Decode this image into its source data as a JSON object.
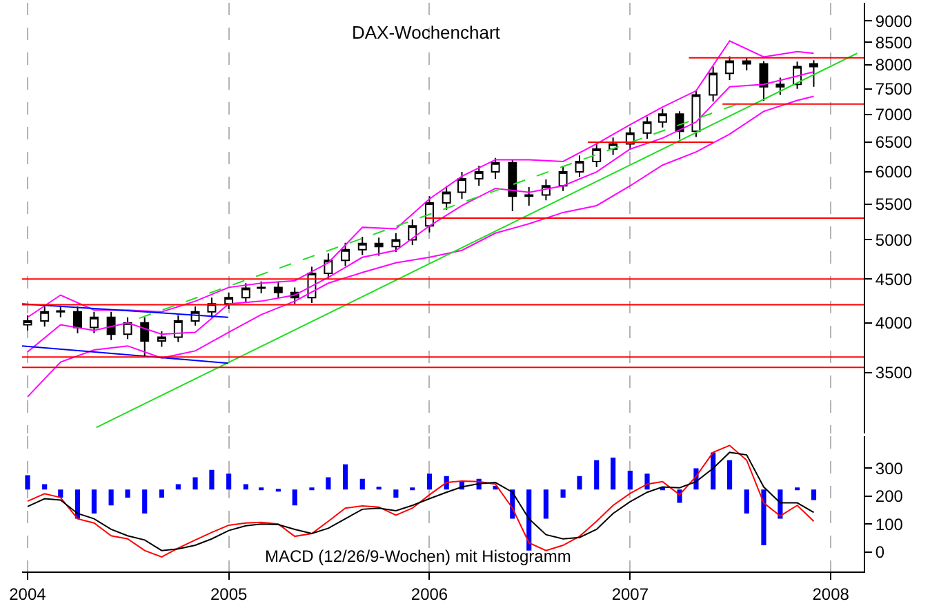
{
  "chart_data": [
    {
      "type": "candlestick",
      "title": "DAX-Wochenchart",
      "log": true,
      "grid": "x",
      "tick_labels": "y",
      "color": "#000000",
      "xlim": [
        "2003-12-22",
        "2008-03-01"
      ],
      "xticks": [
        "2004",
        "2005",
        "2006",
        "2007",
        "2008"
      ],
      "ylim": [
        2970,
        9450
      ],
      "yticks": [
        3500,
        4000,
        4500,
        5000,
        5500,
        6000,
        6500,
        7000,
        7500,
        8000,
        8500,
        9000
      ],
      "x": [
        "2004-01",
        "2004-02",
        "2004-03",
        "2004-04",
        "2004-05",
        "2004-06",
        "2004-07",
        "2004-08",
        "2004-09",
        "2004-10",
        "2004-11",
        "2004-12",
        "2005-01",
        "2005-02",
        "2005-03",
        "2005-04",
        "2005-05",
        "2005-06",
        "2005-07",
        "2005-08",
        "2005-09",
        "2005-10",
        "2005-11",
        "2005-12",
        "2006-01",
        "2006-02",
        "2006-03",
        "2006-04",
        "2006-05",
        "2006-06",
        "2006-07",
        "2006-08",
        "2006-09",
        "2006-10",
        "2006-11",
        "2006-12",
        "2007-01",
        "2007-02",
        "2007-03",
        "2007-04",
        "2007-05",
        "2007-06",
        "2007-07",
        "2007-08",
        "2007-09",
        "2007-10",
        "2007-11",
        "2007-12"
      ],
      "ohlc": [
        [
          3980,
          4080,
          3920,
          4020
        ],
        [
          4020,
          4180,
          3960,
          4120
        ],
        [
          4120,
          4190,
          4060,
          4130
        ],
        [
          4120,
          4180,
          3890,
          3950
        ],
        [
          3950,
          4120,
          3890,
          4060
        ],
        [
          4060,
          4120,
          3820,
          3880
        ],
        [
          3880,
          4060,
          3830,
          4000
        ],
        [
          4000,
          4060,
          3650,
          3810
        ],
        [
          3810,
          3910,
          3750,
          3850
        ],
        [
          3850,
          4080,
          3800,
          4020
        ],
        [
          4020,
          4180,
          3970,
          4120
        ],
        [
          4120,
          4280,
          4060,
          4210
        ],
        [
          4210,
          4340,
          4150,
          4280
        ],
        [
          4280,
          4450,
          4220,
          4390
        ],
        [
          4390,
          4470,
          4330,
          4400
        ],
        [
          4400,
          4470,
          4280,
          4340
        ],
        [
          4340,
          4400,
          4210,
          4280
        ],
        [
          4280,
          4650,
          4220,
          4570
        ],
        [
          4570,
          4820,
          4500,
          4730
        ],
        [
          4730,
          4960,
          4660,
          4870
        ],
        [
          4870,
          5040,
          4800,
          4950
        ],
        [
          4950,
          5030,
          4790,
          4910
        ],
        [
          4910,
          5090,
          4840,
          5000
        ],
        [
          5000,
          5280,
          4930,
          5190
        ],
        [
          5190,
          5620,
          5100,
          5520
        ],
        [
          5520,
          5780,
          5420,
          5680
        ],
        [
          5680,
          6000,
          5580,
          5890
        ],
        [
          5890,
          6100,
          5780,
          6000
        ],
        [
          6000,
          6230,
          5890,
          6150
        ],
        [
          6150,
          6200,
          5400,
          5620
        ],
        [
          5620,
          5760,
          5480,
          5640
        ],
        [
          5640,
          5880,
          5560,
          5780
        ],
        [
          5780,
          6100,
          5700,
          6000
        ],
        [
          6000,
          6270,
          5920,
          6170
        ],
        [
          6170,
          6480,
          6080,
          6380
        ],
        [
          6380,
          6580,
          6280,
          6470
        ],
        [
          6470,
          6760,
          6370,
          6660
        ],
        [
          6660,
          6960,
          6560,
          6860
        ],
        [
          6860,
          7110,
          6760,
          7010
        ],
        [
          7010,
          7060,
          6550,
          6690
        ],
        [
          6690,
          7460,
          6590,
          7380
        ],
        [
          7380,
          7960,
          7250,
          7820
        ],
        [
          7820,
          8180,
          7680,
          8080
        ],
        [
          8080,
          8150,
          7880,
          8020
        ],
        [
          8020,
          8080,
          7260,
          7540
        ],
        [
          7540,
          7730,
          7380,
          7590
        ],
        [
          7590,
          8070,
          7500,
          7960
        ],
        [
          7960,
          8100,
          7540,
          8020
        ]
      ],
      "series": [
        {
          "type": "line",
          "color": "#ff00ff",
          "x": [
            "2004-01",
            "2004-03",
            "2004-05",
            "2004-07",
            "2004-09",
            "2004-11",
            "2005-01",
            "2005-03",
            "2005-05",
            "2005-07",
            "2005-09",
            "2005-11",
            "2006-01",
            "2006-03",
            "2006-05",
            "2006-07",
            "2006-09",
            "2006-11",
            "2007-01",
            "2007-03",
            "2007-05",
            "2007-07",
            "2007-09",
            "2007-11",
            "2007-12"
          ],
          "values": [
            4060,
            4310,
            4140,
            4140,
            4120,
            4240,
            4400,
            4450,
            4480,
            4700,
            5170,
            5150,
            5580,
            5930,
            6200,
            6200,
            6170,
            6470,
            6810,
            7140,
            7460,
            8530,
            8170,
            8290,
            8250
          ]
        },
        {
          "type": "line",
          "color": "#ff00ff",
          "x": [
            "2004-01",
            "2004-03",
            "2004-05",
            "2004-07",
            "2004-09",
            "2004-11",
            "2005-01",
            "2005-03",
            "2005-05",
            "2005-07",
            "2005-09",
            "2005-11",
            "2006-01",
            "2006-03",
            "2006-05",
            "2006-07",
            "2006-09",
            "2006-11",
            "2007-01",
            "2007-03",
            "2007-05",
            "2007-07",
            "2007-09",
            "2007-11",
            "2007-12"
          ],
          "values": [
            3700,
            3980,
            3920,
            4000,
            3880,
            3900,
            4210,
            4240,
            4310,
            4520,
            4770,
            4860,
            5190,
            5480,
            5740,
            5680,
            5780,
            6000,
            6380,
            6570,
            6860,
            7540,
            7590,
            7760,
            7850
          ]
        },
        {
          "type": "line",
          "color": "#ff00ff",
          "x": [
            "2004-01",
            "2004-03",
            "2004-05",
            "2004-07",
            "2004-09",
            "2004-11",
            "2005-01",
            "2005-03",
            "2005-05",
            "2005-07",
            "2005-09",
            "2005-11",
            "2006-01",
            "2006-03",
            "2006-05",
            "2006-07",
            "2006-09",
            "2006-11",
            "2007-01",
            "2007-03",
            "2007-05",
            "2007-07",
            "2007-09",
            "2007-11",
            "2007-12"
          ],
          "values": [
            3280,
            3600,
            3720,
            3760,
            3640,
            3710,
            3900,
            4090,
            4240,
            4450,
            4580,
            4700,
            4770,
            4860,
            5090,
            5220,
            5380,
            5480,
            5780,
            6110,
            6330,
            6640,
            7060,
            7270,
            7350
          ]
        },
        {
          "type": "line",
          "color": "#22dd22",
          "x": [
            "2004-05-05",
            "2008-02-18"
          ],
          "values": [
            3020,
            8250
          ]
        },
        {
          "type": "line",
          "color": "#22dd22",
          "line_style": "dashed",
          "x": [
            "2004-07-22",
            "2007-07-13"
          ],
          "values": [
            4050,
            7190
          ]
        },
        {
          "type": "line",
          "color": "#0000ff",
          "x": [
            "2003-12-22",
            "2004-12-31"
          ],
          "values": [
            4210,
            4060
          ]
        },
        {
          "type": "line",
          "color": "#0000ff",
          "x": [
            "2003-12-22",
            "2004-12-31"
          ],
          "values": [
            3760,
            3590
          ]
        },
        {
          "type": "line",
          "color": "#ff0000",
          "x": [
            "2003-12-22",
            "2008-03-01"
          ],
          "values": [
            3550,
            3550
          ]
        },
        {
          "type": "line",
          "color": "#ff0000",
          "x": [
            "2003-12-22",
            "2008-03-01"
          ],
          "values": [
            3650,
            3650
          ]
        },
        {
          "type": "line",
          "color": "#ff0000",
          "x": [
            "2003-12-22",
            "2008-03-01"
          ],
          "values": [
            4200,
            4200
          ]
        },
        {
          "type": "line",
          "color": "#ff0000",
          "x": [
            "2003-12-22",
            "2008-03-01"
          ],
          "values": [
            4500,
            4500
          ]
        },
        {
          "type": "line",
          "color": "#ff0000",
          "x": [
            "2005-12-26",
            "2008-03-01"
          ],
          "values": [
            5300,
            5300
          ]
        },
        {
          "type": "line",
          "color": "#ff0000",
          "x": [
            "2006-10-16",
            "2007-06-01"
          ],
          "values": [
            6500,
            6500
          ]
        },
        {
          "type": "line",
          "color": "#ff0000",
          "x": [
            "2007-06-18",
            "2008-03-01"
          ],
          "values": [
            7200,
            7200
          ]
        },
        {
          "type": "line",
          "color": "#ff0000",
          "x": [
            "2007-04-18",
            "2008-03-01"
          ],
          "values": [
            8150,
            8150
          ]
        }
      ]
    },
    {
      "type": "line",
      "grid": "x",
      "annotations": [
        "MACD (12/26/9-Wochen) mit Histogramm"
      ],
      "xlim": [
        "2003-12-22",
        "2008-03-01"
      ],
      "xticks": [
        "2004",
        "2005",
        "2006",
        "2007",
        "2008"
      ],
      "ylim": [
        -70,
        414
      ],
      "yticks": [
        0,
        100,
        200,
        300
      ],
      "x": [
        "2004-01",
        "2004-02",
        "2004-03",
        "2004-04",
        "2004-05",
        "2004-06",
        "2004-07",
        "2004-08",
        "2004-09",
        "2004-10",
        "2004-11",
        "2004-12",
        "2005-01",
        "2005-02",
        "2005-03",
        "2005-04",
        "2005-05",
        "2005-06",
        "2005-07",
        "2005-08",
        "2005-09",
        "2005-10",
        "2005-11",
        "2005-12",
        "2006-01",
        "2006-02",
        "2006-03",
        "2006-04",
        "2006-05",
        "2006-06",
        "2006-07",
        "2006-08",
        "2006-09",
        "2006-10",
        "2006-11",
        "2006-12",
        "2007-01",
        "2007-02",
        "2007-03",
        "2007-04",
        "2007-05",
        "2007-06",
        "2007-07",
        "2007-08",
        "2007-09",
        "2007-10",
        "2007-11",
        "2007-12"
      ],
      "series": [
        {
          "type": "bar",
          "color": "#0000ff",
          "base": [
            224,
            224,
            224,
            224,
            224,
            224,
            224,
            224,
            224,
            224,
            224,
            224,
            224,
            224,
            224,
            224,
            224,
            224,
            224,
            224,
            224,
            224,
            224,
            224,
            224,
            224,
            224,
            224,
            224,
            224,
            224,
            224,
            224,
            224,
            224,
            224,
            224,
            224,
            224,
            224,
            224,
            224,
            224,
            224,
            224,
            224,
            224,
            224
          ],
          "values": [
            51,
            19,
            -29,
            -105,
            -86,
            -57,
            -29,
            -86,
            -29,
            19,
            44,
            70,
            57,
            19,
            5,
            -4,
            -57,
            5,
            44,
            90,
            38,
            10,
            -29,
            5,
            57,
            48,
            29,
            38,
            13,
            -105,
            -219,
            -105,
            -29,
            48,
            105,
            114,
            67,
            57,
            5,
            -48,
            76,
            133,
            105,
            -86,
            -200,
            -105,
            5,
            -38
          ]
        },
        {
          "type": "line",
          "color": "#ff0000",
          "values": [
            182,
            209,
            195,
            119,
            104,
            58,
            47,
            5,
            -18,
            14,
            43,
            70,
            96,
            104,
            106,
            100,
            56,
            66,
            110,
            157,
            165,
            161,
            132,
            157,
            205,
            249,
            254,
            252,
            243,
            157,
            33,
            5,
            24,
            56,
            110,
            167,
            210,
            243,
            252,
            205,
            271,
            357,
            382,
            329,
            176,
            129,
            167,
            110
          ]
        },
        {
          "type": "line",
          "color": "#000000",
          "values": [
            163,
            191,
            186,
            138,
            119,
            81,
            58,
            43,
            5,
            11,
            24,
            47,
            77,
            94,
            100,
            98,
            81,
            66,
            85,
            119,
            153,
            157,
            148,
            167,
            191,
            214,
            233,
            245,
            249,
            214,
            119,
            62,
            47,
            52,
            81,
            138,
            180,
            214,
            233,
            230,
            252,
            300,
            357,
            348,
            233,
            176,
            176,
            142
          ]
        }
      ]
    }
  ]
}
